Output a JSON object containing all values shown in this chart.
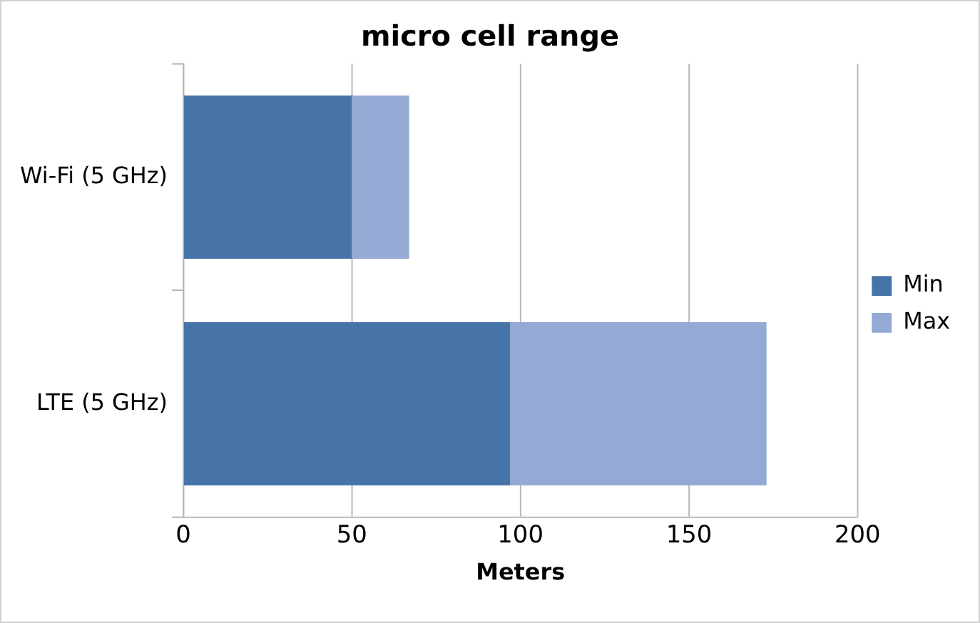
{
  "chart_data": {
    "type": "bar",
    "title": "micro cell range",
    "xlabel": "Meters",
    "orientation": "horizontal",
    "stacked": true,
    "categories": [
      "Wi-Fi (5 GHz)",
      "LTE (5 GHz)"
    ],
    "series": [
      {
        "name": "Min",
        "color": "#4674a8",
        "values": [
          50,
          97
        ]
      },
      {
        "name": "Max",
        "color": "#94aad4",
        "values": [
          17,
          76
        ]
      }
    ],
    "xlim": [
      0,
      200
    ],
    "xticks": [
      0,
      50,
      100,
      150,
      200
    ],
    "grid": "x",
    "legend": "right"
  }
}
